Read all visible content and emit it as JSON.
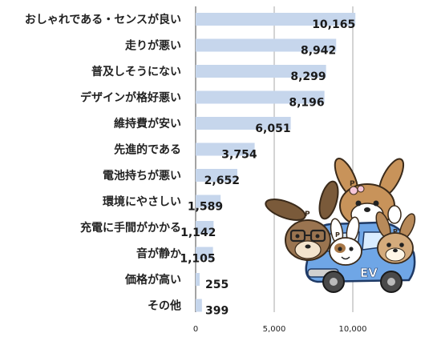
{
  "chart_data": {
    "type": "bar",
    "orientation": "horizontal",
    "title": "",
    "xlabel": "",
    "ylabel": "",
    "categories": [
      "おしゃれである・センスが良い",
      "走りが悪い",
      "普及しそうにない",
      "デザインが格好悪い",
      "維持費が安い",
      "先進的である",
      "電池持ちが悪い",
      "環境にやさしい",
      "充電に手間がかかる",
      "音が静か",
      "価格が高い",
      "その他"
    ],
    "values": [
      10165,
      8942,
      8299,
      8196,
      6051,
      3754,
      2652,
      1589,
      1142,
      1105,
      255,
      399
    ],
    "value_labels": [
      "10,165",
      "8,942",
      "8,299",
      "8,196",
      "6,051",
      "3,754",
      "2,652",
      "1,589",
      "1,142",
      "1,105",
      "255",
      "399"
    ],
    "xlim": [
      0,
      10000
    ],
    "x_ticks": [
      "0",
      "5,000",
      "10,000"
    ],
    "grid": true,
    "colors": {
      "bar": "#c6d6ec",
      "grid": "#a8a8a8",
      "axis": "#666666"
    }
  },
  "illustration": {
    "car_label": "EV",
    "badge_letter": "P",
    "icon": "cartoon-rabbits-in-ev-car-icon"
  }
}
